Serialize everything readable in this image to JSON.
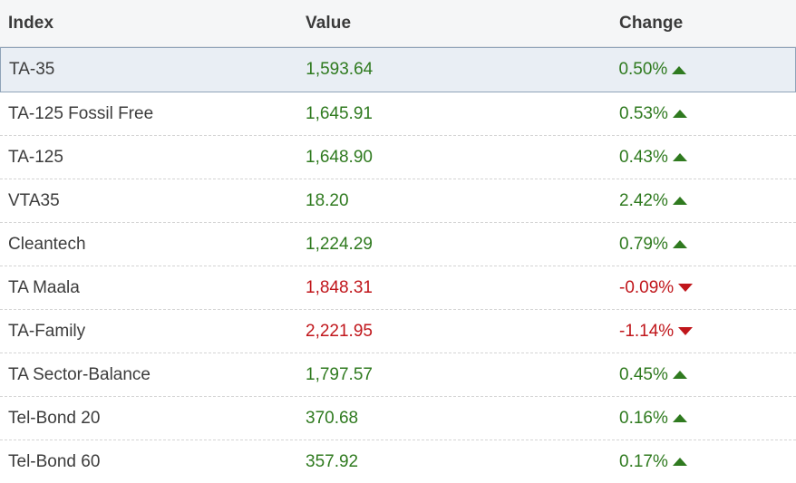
{
  "header": {
    "index": "Index",
    "value": "Value",
    "change": "Change"
  },
  "colors": {
    "up": "#2f7a1f",
    "down": "#c0161b",
    "selected_row_bg": "#e9eef4"
  },
  "rows": [
    {
      "index": "TA-35",
      "value": "1,593.64",
      "change": "0.50%",
      "direction": "up",
      "selected": true
    },
    {
      "index": "TA-125 Fossil Free",
      "value": "1,645.91",
      "change": "0.53%",
      "direction": "up",
      "selected": false
    },
    {
      "index": "TA-125",
      "value": "1,648.90",
      "change": "0.43%",
      "direction": "up",
      "selected": false
    },
    {
      "index": "VTA35",
      "value": "18.20",
      "change": "2.42%",
      "direction": "up",
      "selected": false
    },
    {
      "index": "Cleantech",
      "value": "1,224.29",
      "change": "0.79%",
      "direction": "up",
      "selected": false
    },
    {
      "index": "TA Maala",
      "value": "1,848.31",
      "change": "-0.09%",
      "direction": "down",
      "selected": false
    },
    {
      "index": "TA-Family",
      "value": "2,221.95",
      "change": "-1.14%",
      "direction": "down",
      "selected": false
    },
    {
      "index": "TA Sector-Balance",
      "value": "1,797.57",
      "change": "0.45%",
      "direction": "up",
      "selected": false
    },
    {
      "index": "Tel-Bond 20",
      "value": "370.68",
      "change": "0.16%",
      "direction": "up",
      "selected": false
    },
    {
      "index": "Tel-Bond 60",
      "value": "357.92",
      "change": "0.17%",
      "direction": "up",
      "selected": false
    }
  ]
}
